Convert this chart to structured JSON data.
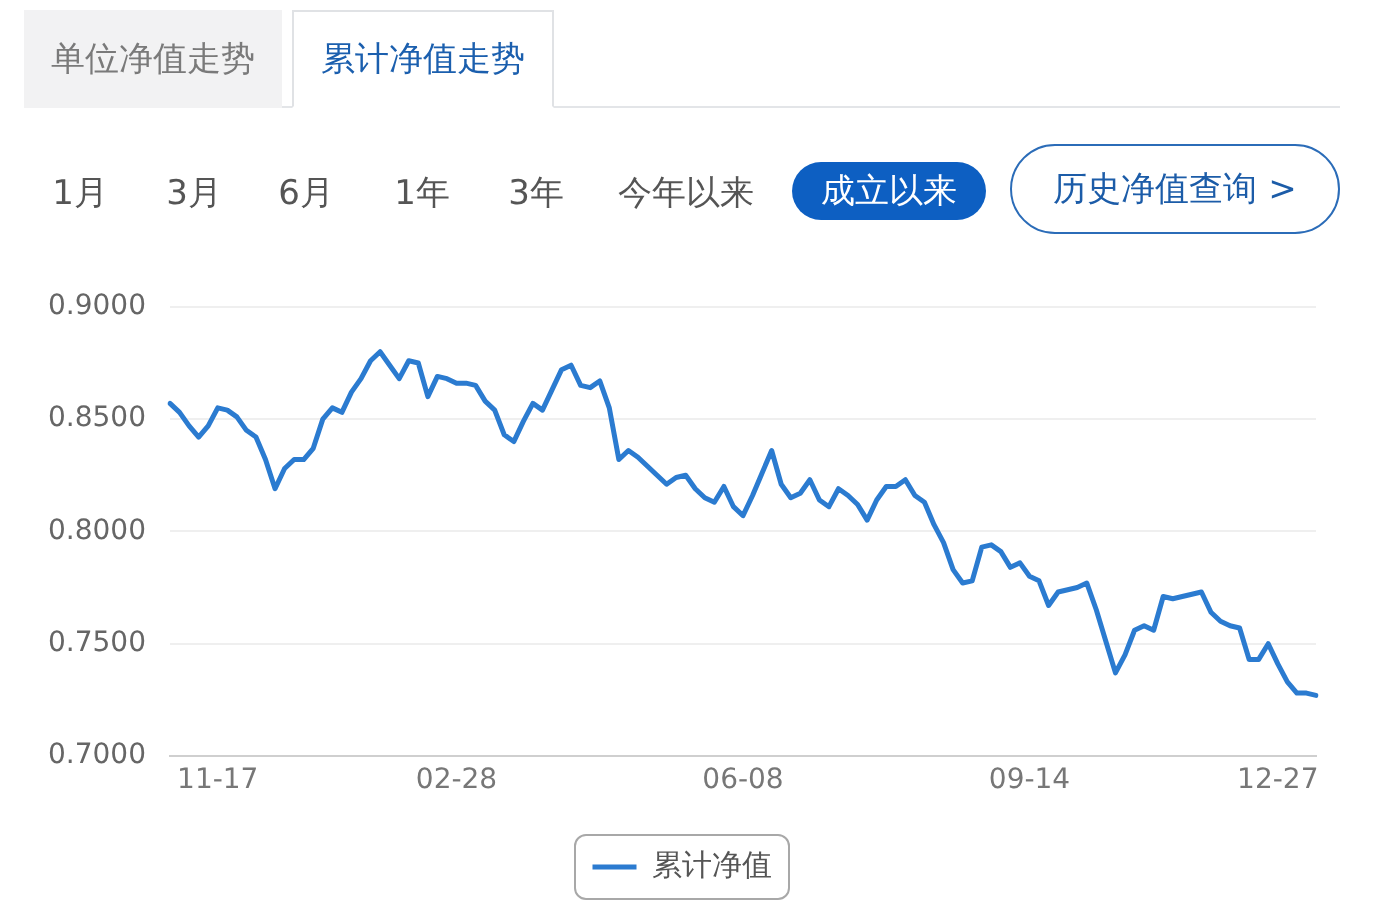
{
  "chart_data": {
    "type": "line",
    "annotations": [
      "单位净值走势",
      "累计净值走势",
      "1月",
      "3月",
      "6月",
      "1年",
      "3年",
      "今年以来",
      "成立以来",
      "历史净值查询 >"
    ],
    "categories": [
      null,
      null,
      null,
      null,
      null,
      "11-17",
      null,
      null,
      null,
      null,
      null,
      null,
      null,
      null,
      null,
      null,
      null,
      null,
      null,
      null,
      null,
      null,
      null,
      null,
      null,
      null,
      null,
      null,
      null,
      null,
      "02-28",
      null,
      null,
      null,
      null,
      null,
      null,
      null,
      null,
      null,
      null,
      null,
      null,
      null,
      null,
      null,
      null,
      null,
      null,
      null,
      null,
      null,
      null,
      null,
      null,
      null,
      null,
      null,
      null,
      null,
      "06-08",
      null,
      null,
      null,
      null,
      null,
      null,
      null,
      null,
      null,
      null,
      null,
      null,
      null,
      null,
      null,
      null,
      null,
      null,
      null,
      null,
      null,
      null,
      null,
      null,
      null,
      null,
      null,
      null,
      null,
      "09-14",
      null,
      null,
      null,
      null,
      null,
      null,
      null,
      null,
      null,
      null,
      null,
      null,
      null,
      null,
      null,
      null,
      null,
      null,
      null,
      null,
      null,
      null,
      null,
      null,
      null,
      "12-27",
      null,
      null,
      null,
      null
    ],
    "series": [
      {
        "name": "累计净值",
        "color": "#2b7bd0",
        "values": [
          0.857,
          0.853,
          0.847,
          0.842,
          0.847,
          0.855,
          0.854,
          0.851,
          0.845,
          0.842,
          0.832,
          0.819,
          0.828,
          0.832,
          0.832,
          0.837,
          0.85,
          0.855,
          0.853,
          0.862,
          0.868,
          0.876,
          0.88,
          0.874,
          0.868,
          0.876,
          0.875,
          0.86,
          0.869,
          0.868,
          0.866,
          0.866,
          0.865,
          0.858,
          0.854,
          0.843,
          0.84,
          0.849,
          0.857,
          0.854,
          0.863,
          0.872,
          0.874,
          0.865,
          0.864,
          0.867,
          0.855,
          0.832,
          0.836,
          0.833,
          0.829,
          0.825,
          0.821,
          0.824,
          0.825,
          0.819,
          0.815,
          0.813,
          0.82,
          0.811,
          0.807,
          0.816,
          0.826,
          0.836,
          0.821,
          0.815,
          0.817,
          0.823,
          0.814,
          0.811,
          0.819,
          0.816,
          0.812,
          0.805,
          0.814,
          0.82,
          0.82,
          0.823,
          0.816,
          0.813,
          0.803,
          0.795,
          0.783,
          0.777,
          0.778,
          0.793,
          0.794,
          0.791,
          0.784,
          0.786,
          0.78,
          0.778,
          0.767,
          0.773,
          0.774,
          0.775,
          0.777,
          0.765,
          0.751,
          0.737,
          0.745,
          0.756,
          0.758,
          0.756,
          0.771,
          0.77,
          0.771,
          0.772,
          0.773,
          0.764,
          0.76,
          0.758,
          0.757,
          0.743,
          0.743,
          0.75,
          0.741,
          0.733,
          0.728,
          0.728,
          0.727
        ]
      }
    ],
    "ylim": [
      0.7,
      0.9
    ],
    "yticks": [
      {
        "value": 0.7,
        "label": "0.7000"
      },
      {
        "value": 0.75,
        "label": "0.7500"
      },
      {
        "value": 0.8,
        "label": "0.8000"
      },
      {
        "value": 0.85,
        "label": "0.8500"
      },
      {
        "value": 0.9,
        "label": "0.9000"
      }
    ],
    "grid": "y",
    "legend": "bottom",
    "marker": "none",
    "line_style": "solid"
  }
}
